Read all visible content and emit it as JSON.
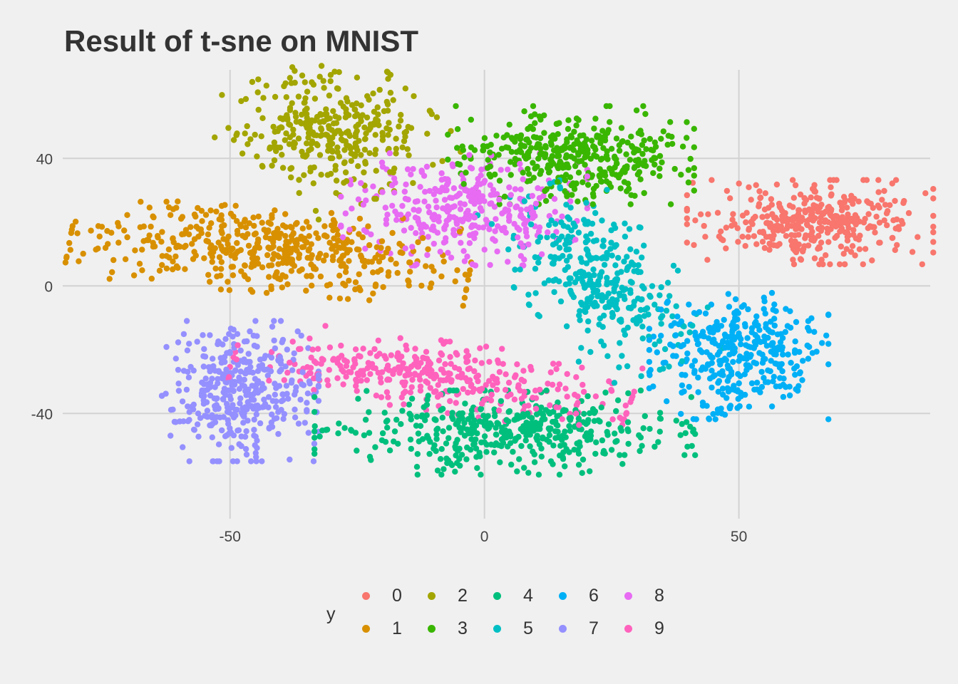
{
  "chart_data": {
    "type": "scatter",
    "title": "Result of t-sne on MNIST",
    "xlabel": "",
    "ylabel": "",
    "xlim": [
      -84,
      89
    ],
    "ylim": [
      -73,
      70
    ],
    "x_ticks": [
      {
        "value": -50,
        "label": "-50"
      },
      {
        "value": 0,
        "label": "0"
      },
      {
        "value": 50,
        "label": "50"
      }
    ],
    "y_ticks": [
      {
        "value": 40,
        "label": "40"
      },
      {
        "value": 0,
        "label": "0"
      },
      {
        "value": -40,
        "label": "-40"
      }
    ],
    "grid": true,
    "legend": {
      "title": "y",
      "placement": "bottom"
    },
    "series": [
      {
        "name": "0",
        "color": "#F8766D",
        "clusters": [
          {
            "cx": 64,
            "cy": 20,
            "sx": 11,
            "sy": 6,
            "n": 380
          }
        ]
      },
      {
        "name": "1",
        "color": "#D89000",
        "clusters": [
          {
            "cx": -42,
            "cy": 11,
            "sx": 18,
            "sy": 6,
            "n": 480,
            "tilt": -0.12
          }
        ]
      },
      {
        "name": "2",
        "color": "#A3A500",
        "clusters": [
          {
            "cx": -30,
            "cy": 48,
            "sx": 9,
            "sy": 10,
            "n": 340,
            "tilt": 0.6
          }
        ]
      },
      {
        "name": "3",
        "color": "#39B600",
        "clusters": [
          {
            "cx": 17,
            "cy": 41,
            "sx": 11,
            "sy": 7,
            "n": 400
          }
        ]
      },
      {
        "name": "4",
        "color": "#00BF7D",
        "clusters": [
          {
            "cx": 4,
            "cy": -46,
            "sx": 17,
            "sy": 6,
            "n": 440
          }
        ]
      },
      {
        "name": "5",
        "color": "#00BFC4",
        "clusters": [
          {
            "cx": 22,
            "cy": 2,
            "sx": 7,
            "sy": 14,
            "n": 340,
            "tilt": 0.5
          }
        ]
      },
      {
        "name": "6",
        "color": "#00B0F6",
        "clusters": [
          {
            "cx": 50,
            "cy": -22,
            "sx": 8,
            "sy": 9,
            "n": 360
          }
        ]
      },
      {
        "name": "7",
        "color": "#9590FF",
        "clusters": [
          {
            "cx": -48,
            "cy": -33,
            "sx": 7,
            "sy": 10,
            "n": 380
          }
        ]
      },
      {
        "name": "8",
        "color": "#E76BF3",
        "clusters": [
          {
            "cx": -4,
            "cy": 24,
            "sx": 11,
            "sy": 8,
            "n": 340
          }
        ]
      },
      {
        "name": "9",
        "color": "#FF62BC",
        "clusters": [
          {
            "cx": -10,
            "cy": -28,
            "sx": 18,
            "sy": 5,
            "n": 360,
            "tilt": -0.22
          }
        ]
      }
    ]
  }
}
